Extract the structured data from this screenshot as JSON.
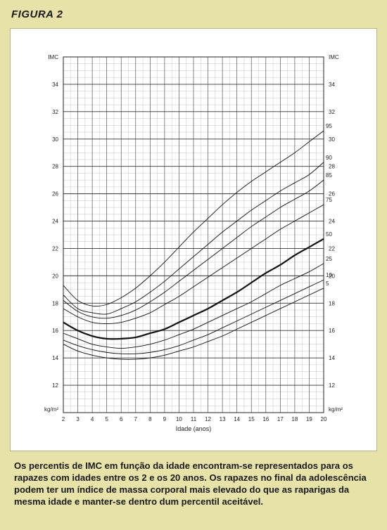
{
  "figure_label": "FIGURA 2",
  "caption": "Os percentis de IMC em função da idade encontram-se representados para os rapazes com idades entre os 2 e os 20 anos. Os rapazes no final da adolescência podem ter um índice de massa corporal mais elevado do que as raparigas da mesma idade e manter-se dentro dum percentil aceitável.",
  "chart_data": {
    "type": "line",
    "xlabel": "Idade (anos)",
    "ylabel": "IMC",
    "unit_label": "kg/m²",
    "xlim": [
      2,
      20
    ],
    "ylim": [
      10,
      36
    ],
    "x_ticks": [
      2,
      3,
      4,
      5,
      6,
      7,
      8,
      9,
      10,
      11,
      12,
      13,
      14,
      15,
      16,
      17,
      18,
      19,
      20
    ],
    "y_ticks": [
      12,
      14,
      16,
      18,
      20,
      22,
      24,
      26,
      28,
      30,
      32,
      34
    ],
    "grid": true,
    "x": [
      2,
      3,
      4,
      5,
      6,
      7,
      8,
      9,
      10,
      11,
      12,
      13,
      14,
      15,
      16,
      17,
      18,
      19,
      20
    ],
    "series": [
      {
        "name": "95",
        "values": [
          19.3,
          18.2,
          17.8,
          17.9,
          18.4,
          19.1,
          20.0,
          21.0,
          22.1,
          23.2,
          24.2,
          25.2,
          26.1,
          26.9,
          27.6,
          28.3,
          29.0,
          29.8,
          30.6
        ]
      },
      {
        "name": "90",
        "values": [
          18.6,
          17.6,
          17.3,
          17.2,
          17.6,
          18.1,
          18.8,
          19.6,
          20.5,
          21.4,
          22.3,
          23.2,
          24.0,
          24.8,
          25.5,
          26.2,
          26.8,
          27.4,
          28.3
        ]
      },
      {
        "name": "85",
        "values": [
          18.2,
          17.4,
          17.0,
          16.9,
          17.1,
          17.5,
          18.1,
          18.8,
          19.6,
          20.4,
          21.2,
          22.0,
          22.8,
          23.6,
          24.3,
          25.0,
          25.6,
          26.2,
          27.0
        ]
      },
      {
        "name": "75",
        "values": [
          17.6,
          17.0,
          16.6,
          16.5,
          16.6,
          16.9,
          17.3,
          17.9,
          18.5,
          19.2,
          19.9,
          20.6,
          21.3,
          22.0,
          22.7,
          23.4,
          24.0,
          24.6,
          25.2
        ]
      },
      {
        "name": "50",
        "values": [
          16.6,
          16.0,
          15.6,
          15.4,
          15.4,
          15.5,
          15.8,
          16.1,
          16.6,
          17.1,
          17.6,
          18.2,
          18.8,
          19.5,
          20.2,
          20.8,
          21.5,
          22.1,
          22.7
        ]
      },
      {
        "name": "25",
        "values": [
          15.8,
          15.4,
          15.0,
          14.8,
          14.7,
          14.8,
          15.0,
          15.3,
          15.7,
          16.1,
          16.6,
          17.1,
          17.6,
          18.1,
          18.7,
          19.3,
          19.8,
          20.3,
          20.9
        ]
      },
      {
        "name": "10",
        "values": [
          15.3,
          14.9,
          14.6,
          14.4,
          14.3,
          14.3,
          14.4,
          14.6,
          14.9,
          15.3,
          15.7,
          16.2,
          16.7,
          17.2,
          17.7,
          18.2,
          18.7,
          19.2,
          19.7
        ]
      },
      {
        "name": "5",
        "values": [
          15.0,
          14.5,
          14.2,
          14.0,
          13.9,
          13.9,
          14.0,
          14.2,
          14.5,
          14.8,
          15.2,
          15.6,
          16.1,
          16.6,
          17.1,
          17.6,
          18.1,
          18.6,
          19.1
        ]
      }
    ],
    "highlight_series": "50"
  }
}
